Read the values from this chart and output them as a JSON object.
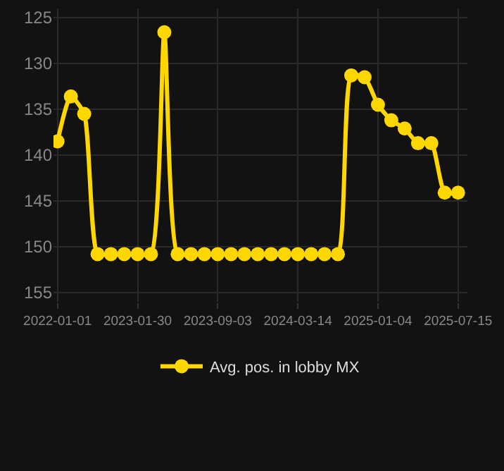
{
  "chart_data": {
    "type": "line",
    "categories": [
      "2022-01-01",
      null,
      null,
      null,
      null,
      null,
      "2023-01-30",
      null,
      null,
      null,
      null,
      null,
      "2023-09-03",
      null,
      null,
      null,
      null,
      null,
      "2024-03-14",
      null,
      null,
      null,
      null,
      null,
      "2025-01-04",
      null,
      null,
      null,
      null,
      null,
      "2025-07-15"
    ],
    "series": [
      {
        "name": "Avg. pos. in lobby MX",
        "color": "#ffd700",
        "values": [
          138.5,
          133.6,
          135.5,
          150.8,
          150.8,
          150.8,
          150.8,
          150.8,
          126.6,
          150.8,
          150.8,
          150.8,
          150.8,
          150.8,
          150.8,
          150.8,
          150.8,
          150.8,
          150.8,
          150.8,
          150.8,
          150.8,
          131.3,
          131.5,
          134.5,
          136.2,
          137.1,
          138.7,
          138.7,
          144.1,
          144.1
        ]
      }
    ],
    "ylim": [
      156,
      124
    ],
    "yticks": [
      125,
      130,
      135,
      140,
      145,
      150,
      155
    ],
    "grid": true,
    "legend": "bottom",
    "marker": "circle",
    "line_style": "solid"
  }
}
